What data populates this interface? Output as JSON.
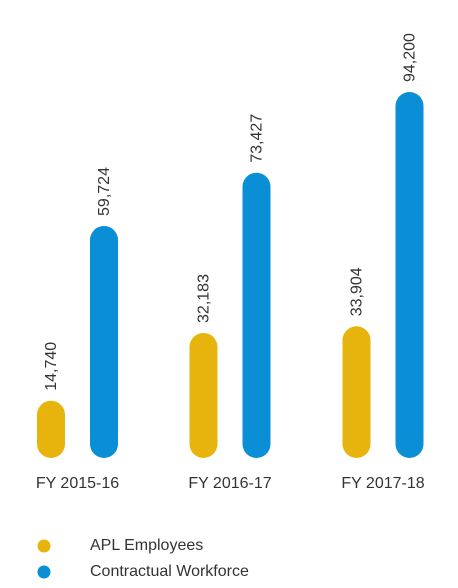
{
  "chart_data": {
    "type": "bar",
    "categories": [
      "FY 2015-16",
      "FY 2016-17",
      "FY 2017-18"
    ],
    "series": [
      {
        "name": "APL Employees",
        "color": "#e6b40c",
        "values": [
          14740,
          32183,
          33904
        ],
        "value_labels": [
          "14,740",
          "32,183",
          "33,904"
        ]
      },
      {
        "name": "Contractual Workforce",
        "color": "#0a8fd6",
        "values": [
          59724,
          73427,
          94200
        ],
        "value_labels": [
          "59,724",
          "73,427",
          "94,200"
        ]
      }
    ],
    "ylim": [
      0,
      100000
    ],
    "legend": "bottom-left"
  }
}
